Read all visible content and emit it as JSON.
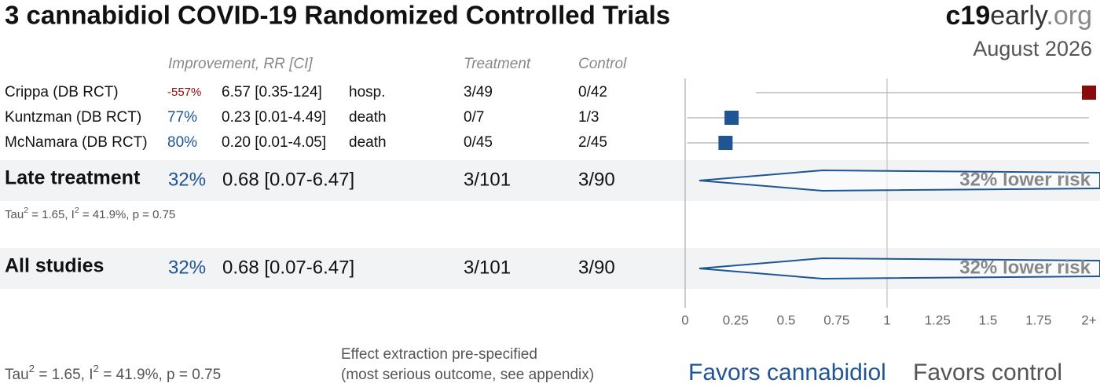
{
  "chart_data": {
    "type": "forest",
    "title": "3 cannabidiol COVID-19 Randomized Controlled Trials",
    "brand": [
      "c19",
      "early",
      ".org"
    ],
    "date": "August 2026",
    "columns": [
      "Improvement, RR [CI]",
      "Treatment",
      "Control"
    ],
    "positive_color": "#1f5495",
    "negative_color": "#8b0a0a",
    "studies": [
      {
        "name": "Crippa (DB RCT)",
        "improvement": -557,
        "improvement_label": "-557%",
        "rr": 6.57,
        "ci": [
          0.35,
          124
        ],
        "rr_label": "6.57 [0.35-124]",
        "outcome": "hosp.",
        "treatment": "3/49",
        "control": "0/42"
      },
      {
        "name": "Kuntzman (DB RCT)",
        "improvement": 77,
        "improvement_label": "77%",
        "rr": 0.23,
        "ci": [
          0.01,
          4.49
        ],
        "rr_label": "0.23 [0.01-4.49]",
        "outcome": "death",
        "treatment": "0/7",
        "control": "1/3"
      },
      {
        "name": "McNamara (DB RCT)",
        "improvement": 80,
        "improvement_label": "80%",
        "rr": 0.2,
        "ci": [
          0.01,
          4.05
        ],
        "rr_label": "0.20 [0.01-4.05]",
        "outcome": "death",
        "treatment": "0/45",
        "control": "2/45"
      }
    ],
    "summaries": [
      {
        "name": "Late treatment",
        "improvement": 32,
        "improvement_label": "32%",
        "rr": 0.68,
        "ci": [
          0.07,
          6.47
        ],
        "rr_label": "0.68 [0.07-6.47]",
        "treatment": "3/101",
        "control": "3/90",
        "risk_label": "32% lower risk",
        "heterogeneity": [
          "Tau",
          "2",
          " = 1.65, I",
          "2",
          " = 41.9%, p = 0.75"
        ]
      },
      {
        "name": "All studies",
        "improvement": 32,
        "improvement_label": "32%",
        "rr": 0.68,
        "ci": [
          0.07,
          6.47
        ],
        "rr_label": "0.68 [0.07-6.47]",
        "treatment": "3/101",
        "control": "3/90",
        "risk_label": "32% lower risk"
      }
    ],
    "heterogeneity": [
      "Tau",
      "2",
      " = 1.65, I",
      "2",
      " = 41.9%, p = 0.75"
    ],
    "xlim": [
      0,
      2
    ],
    "xticks": [
      0,
      0.25,
      0.5,
      0.75,
      1,
      1.25,
      1.5,
      1.75,
      {
        "value": 2,
        "label": "2+"
      }
    ],
    "note": [
      "Effect extraction pre-specified",
      "(most serious outcome, see appendix)"
    ],
    "favors": [
      "Favors cannabidiol",
      "Favors control"
    ]
  }
}
